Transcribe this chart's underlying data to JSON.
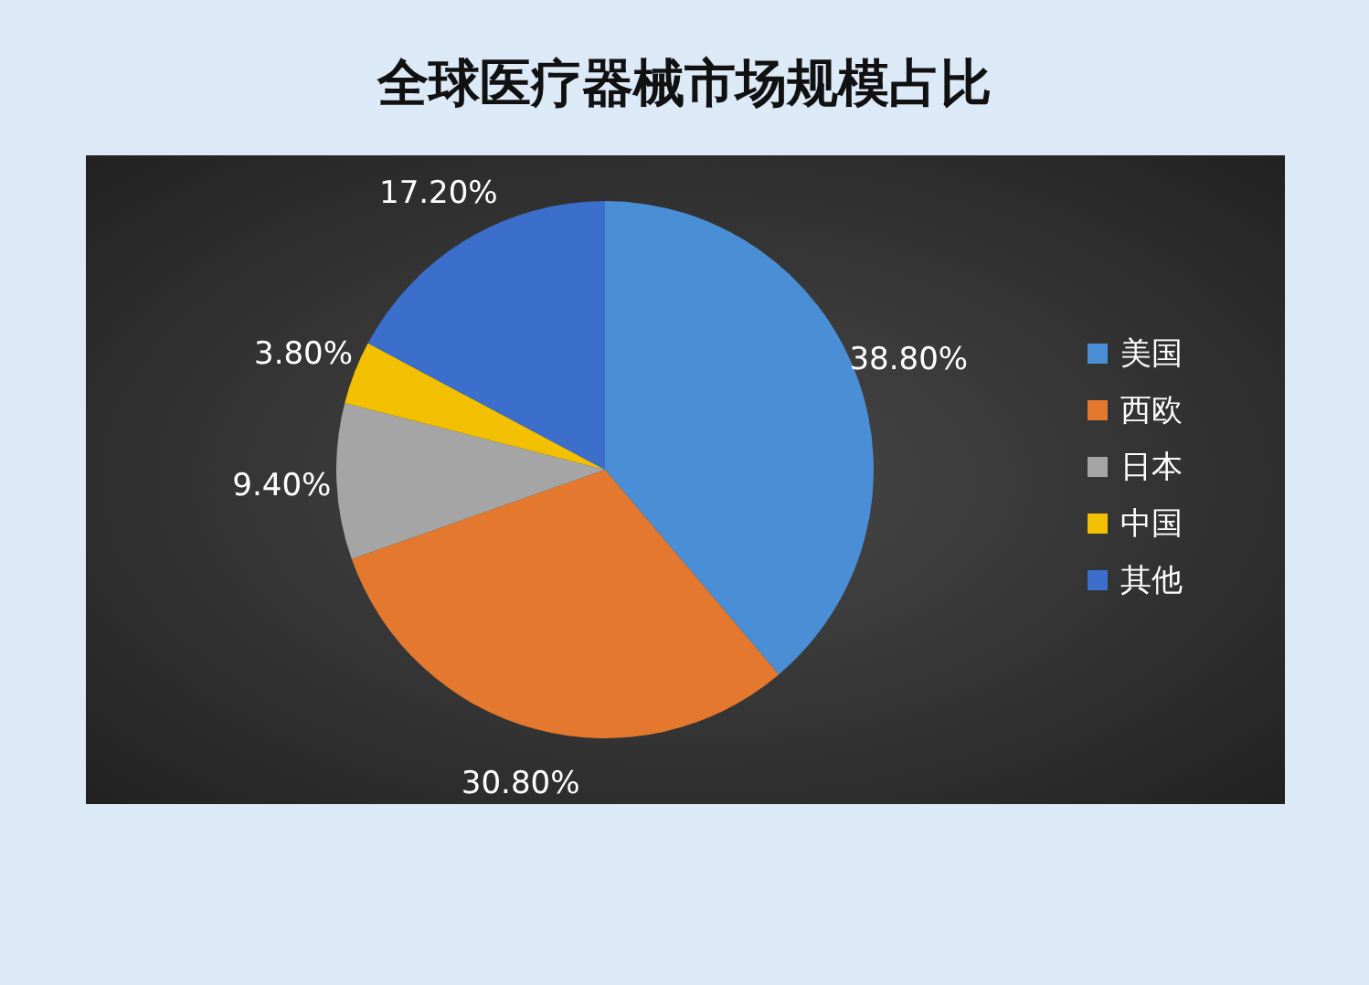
{
  "chart_data": {
    "type": "pie",
    "title": "全球医疗器械市场规模占比",
    "categories": [
      "美国",
      "西欧",
      "日本",
      "中国",
      "其他"
    ],
    "values": [
      38.8,
      30.8,
      9.4,
      3.8,
      17.2
    ],
    "colors": [
      "#4a8ed6",
      "#e4782e",
      "#a5a5a5",
      "#f2c000",
      "#3b6fcb"
    ],
    "value_labels": [
      "38.80%",
      "30.80%",
      "9.40%",
      "3.80%",
      "17.20%"
    ],
    "legend": "right"
  }
}
